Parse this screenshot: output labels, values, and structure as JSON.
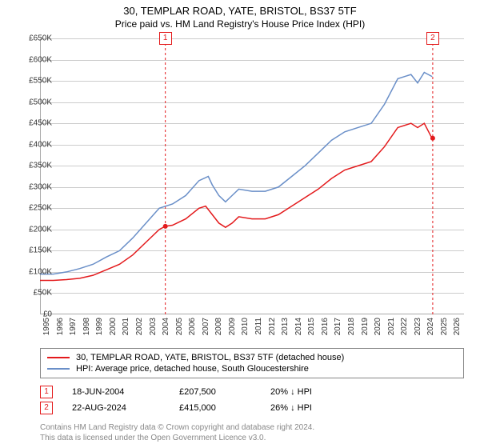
{
  "title": "30, TEMPLAR ROAD, YATE, BRISTOL, BS37 5TF",
  "subtitle": "Price paid vs. HM Land Registry's House Price Index (HPI)",
  "chart": {
    "type": "line",
    "background_color": "#ffffff",
    "grid_color": "#cccccc",
    "axis_color": "#aaaaaa",
    "ylim": [
      0,
      650000
    ],
    "ytick_step": 50000,
    "ytick_format_prefix": "£",
    "ytick_format_suffix": "K",
    "ytick_divisor": 1000,
    "xlim": [
      1995,
      2027
    ],
    "xticks": [
      1995,
      1996,
      1997,
      1998,
      1999,
      2000,
      2001,
      2002,
      2003,
      2004,
      2005,
      2006,
      2007,
      2008,
      2009,
      2010,
      2011,
      2012,
      2013,
      2014,
      2015,
      2016,
      2017,
      2018,
      2019,
      2020,
      2021,
      2022,
      2023,
      2024,
      2025,
      2026
    ],
    "tick_fontsize": 10,
    "series": [
      {
        "id": "price_paid",
        "label": "30, TEMPLAR ROAD, YATE, BRISTOL, BS37 5TF (detached house)",
        "color": "#e31a1c",
        "line_width": 1.5,
        "points": [
          [
            1995,
            80000
          ],
          [
            1996,
            80000
          ],
          [
            1997,
            82000
          ],
          [
            1998,
            85000
          ],
          [
            1999,
            92000
          ],
          [
            2000,
            105000
          ],
          [
            2001,
            118000
          ],
          [
            2002,
            140000
          ],
          [
            2003,
            170000
          ],
          [
            2004,
            200000
          ],
          [
            2004.46,
            207500
          ],
          [
            2005,
            210000
          ],
          [
            2006,
            225000
          ],
          [
            2007,
            250000
          ],
          [
            2007.5,
            255000
          ],
          [
            2008,
            235000
          ],
          [
            2008.5,
            215000
          ],
          [
            2009,
            205000
          ],
          [
            2009.5,
            215000
          ],
          [
            2010,
            230000
          ],
          [
            2011,
            225000
          ],
          [
            2012,
            225000
          ],
          [
            2013,
            235000
          ],
          [
            2014,
            255000
          ],
          [
            2015,
            275000
          ],
          [
            2016,
            295000
          ],
          [
            2017,
            320000
          ],
          [
            2018,
            340000
          ],
          [
            2019,
            350000
          ],
          [
            2020,
            360000
          ],
          [
            2021,
            395000
          ],
          [
            2022,
            440000
          ],
          [
            2023,
            450000
          ],
          [
            2023.5,
            440000
          ],
          [
            2024,
            450000
          ],
          [
            2024.5,
            420000
          ],
          [
            2024.64,
            415000
          ]
        ],
        "data_markers": [
          {
            "x": 2004.46,
            "y": 207500
          },
          {
            "x": 2024.64,
            "y": 415000
          }
        ]
      },
      {
        "id": "hpi",
        "label": "HPI: Average price, detached house, South Gloucestershire",
        "color": "#6a8fc8",
        "line_width": 1.5,
        "points": [
          [
            1995,
            95000
          ],
          [
            1996,
            95000
          ],
          [
            1997,
            100000
          ],
          [
            1998,
            108000
          ],
          [
            1999,
            118000
          ],
          [
            2000,
            135000
          ],
          [
            2001,
            150000
          ],
          [
            2002,
            180000
          ],
          [
            2003,
            215000
          ],
          [
            2004,
            250000
          ],
          [
            2005,
            260000
          ],
          [
            2006,
            280000
          ],
          [
            2007,
            315000
          ],
          [
            2007.7,
            325000
          ],
          [
            2008,
            305000
          ],
          [
            2008.5,
            280000
          ],
          [
            2009,
            265000
          ],
          [
            2009.5,
            280000
          ],
          [
            2010,
            295000
          ],
          [
            2011,
            290000
          ],
          [
            2012,
            290000
          ],
          [
            2013,
            300000
          ],
          [
            2014,
            325000
          ],
          [
            2015,
            350000
          ],
          [
            2016,
            380000
          ],
          [
            2017,
            410000
          ],
          [
            2018,
            430000
          ],
          [
            2019,
            440000
          ],
          [
            2020,
            450000
          ],
          [
            2021,
            495000
          ],
          [
            2022,
            555000
          ],
          [
            2023,
            565000
          ],
          [
            2023.5,
            545000
          ],
          [
            2024,
            570000
          ],
          [
            2024.6,
            560000
          ]
        ]
      }
    ],
    "events": [
      {
        "n": "1",
        "x": 2004.46,
        "date": "18-JUN-2004",
        "price": "£207,500",
        "pct": "20% ↓ HPI",
        "color": "#e31a1c"
      },
      {
        "n": "2",
        "x": 2024.64,
        "date": "22-AUG-2024",
        "price": "£415,000",
        "pct": "26% ↓ HPI",
        "color": "#e31a1c"
      }
    ]
  },
  "legend": {
    "border_color": "#888888",
    "fontsize": 11
  },
  "footer_line1": "Contains HM Land Registry data © Crown copyright and database right 2024.",
  "footer_line2": "This data is licensed under the Open Government Licence v3.0."
}
